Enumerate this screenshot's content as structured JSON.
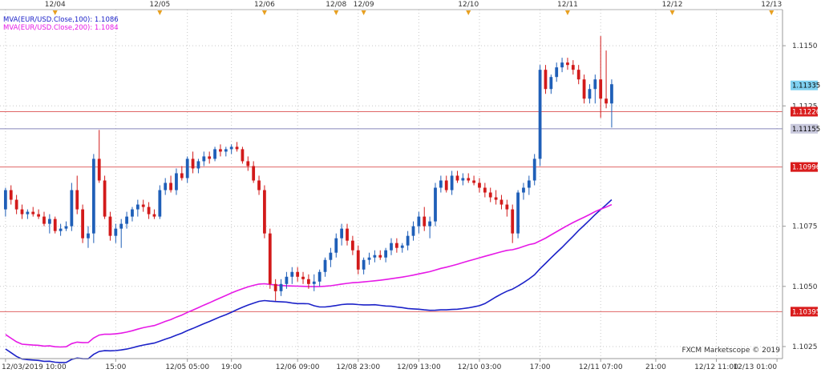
{
  "chart_data": {
    "type": "candlestick",
    "credit": "FXCM Marketscope © 2019",
    "legend": [
      {
        "label": "MVA(EUR/USD.Close,100): 1.1086",
        "color": "#1c22c8"
      },
      {
        "label": "MVA(EUR/USD.Close,200): 1.1084",
        "color": "#e619e6"
      }
    ],
    "ylim": [
      1.102,
      1.1165
    ],
    "y_ticks": [
      "1.1150",
      "1.1125",
      "1.1075",
      "1.1050",
      "1.1025"
    ],
    "y_tick_values": [
      1.115,
      1.1125,
      1.1075,
      1.105,
      1.1025
    ],
    "top_axis": {
      "labels": [
        "12/04",
        "12/05",
        "12/06",
        "12/08",
        "12/09",
        "12/10",
        "12/11",
        "12/12",
        "12/13"
      ],
      "positions": [
        9,
        28,
        47,
        60,
        65,
        84,
        102,
        121,
        139
      ]
    },
    "bottom_axis": {
      "labels": [
        "12/03/2019 10:00",
        "15:00",
        "12/05 05:00",
        "19:00",
        "12/06 09:00",
        "12/08 23:00",
        "12/09 13:00",
        "12/10 03:00",
        "17:00",
        "12/11 07:00",
        "21:00",
        "12/12 11:00",
        "12/13 01:00"
      ],
      "positions": [
        0,
        20,
        33,
        41,
        53,
        64,
        75,
        86,
        97,
        108,
        118,
        129,
        140
      ]
    },
    "x_range": [
      -1,
      141
    ],
    "horizontal_lines": [
      {
        "value": 1.11226,
        "color": "#e06666",
        "label": "1.11226"
      },
      {
        "value": 1.11155,
        "color": "#8888bb",
        "label": "1.11155"
      },
      {
        "value": 1.10996,
        "color": "#e06666",
        "label": "1.10996"
      },
      {
        "value": 1.10395,
        "color": "#e06666",
        "label": "1.10395"
      }
    ],
    "last_price": {
      "value": 1.11335,
      "label": "1.11335"
    },
    "candles": [
      [
        1.1082,
        1.1091,
        1.1079,
        1.109
      ],
      [
        1.109,
        1.1092,
        1.1084,
        1.1086
      ],
      [
        1.1086,
        1.1088,
        1.108,
        1.1082
      ],
      [
        1.1082,
        1.1084,
        1.1078,
        1.108
      ],
      [
        1.108,
        1.1082,
        1.1078,
        1.1081
      ],
      [
        1.1081,
        1.1083,
        1.1079,
        1.108
      ],
      [
        1.108,
        1.1082,
        1.1078,
        1.1079
      ],
      [
        1.1079,
        1.1081,
        1.1075,
        1.1076
      ],
      [
        1.1076,
        1.108,
        1.1072,
        1.1078
      ],
      [
        1.1078,
        1.1079,
        1.1072,
        1.1073
      ],
      [
        1.1073,
        1.1076,
        1.1071,
        1.1074
      ],
      [
        1.1074,
        1.1077,
        1.1073,
        1.1075
      ],
      [
        1.1075,
        1.1093,
        1.1073,
        1.109
      ],
      [
        1.109,
        1.1096,
        1.108,
        1.1082
      ],
      [
        1.1082,
        1.1084,
        1.1068,
        1.107
      ],
      [
        1.107,
        1.1075,
        1.1066,
        1.1072
      ],
      [
        1.1072,
        1.1105,
        1.1068,
        1.1103
      ],
      [
        1.1103,
        1.1115,
        1.1093,
        1.1094
      ],
      [
        1.1094,
        1.1096,
        1.1078,
        1.1079
      ],
      [
        1.1079,
        1.1081,
        1.1069,
        1.1071
      ],
      [
        1.1071,
        1.1076,
        1.1068,
        1.1074
      ],
      [
        1.1074,
        1.1078,
        1.1066,
        1.1076
      ],
      [
        1.1076,
        1.1081,
        1.1074,
        1.1079
      ],
      [
        1.1079,
        1.1083,
        1.1077,
        1.1082
      ],
      [
        1.1082,
        1.1086,
        1.1079,
        1.1084
      ],
      [
        1.1084,
        1.1086,
        1.1081,
        1.1083
      ],
      [
        1.1083,
        1.1085,
        1.1078,
        1.108
      ],
      [
        1.108,
        1.1082,
        1.1078,
        1.1079
      ],
      [
        1.1079,
        1.1092,
        1.1078,
        1.109
      ],
      [
        1.109,
        1.1095,
        1.1088,
        1.1093
      ],
      [
        1.1093,
        1.1096,
        1.1089,
        1.109
      ],
      [
        1.109,
        1.1099,
        1.1088,
        1.1097
      ],
      [
        1.1097,
        1.11,
        1.1094,
        1.1095
      ],
      [
        1.1095,
        1.1104,
        1.1093,
        1.1103
      ],
      [
        1.1103,
        1.1106,
        1.1097,
        1.1099
      ],
      [
        1.1099,
        1.1103,
        1.1097,
        1.1102
      ],
      [
        1.1102,
        1.1106,
        1.11,
        1.1104
      ],
      [
        1.1104,
        1.1106,
        1.1101,
        1.1103
      ],
      [
        1.1103,
        1.1108,
        1.1102,
        1.1107
      ],
      [
        1.1107,
        1.1109,
        1.1104,
        1.1106
      ],
      [
        1.1106,
        1.1108,
        1.1104,
        1.1107
      ],
      [
        1.1107,
        1.1109,
        1.1105,
        1.1108
      ],
      [
        1.1108,
        1.111,
        1.1106,
        1.1107
      ],
      [
        1.1107,
        1.1108,
        1.1101,
        1.1102
      ],
      [
        1.1102,
        1.1104,
        1.1098,
        1.11
      ],
      [
        1.11,
        1.1102,
        1.1093,
        1.1094
      ],
      [
        1.1094,
        1.1096,
        1.1088,
        1.109
      ],
      [
        1.109,
        1.1092,
        1.107,
        1.1072
      ],
      [
        1.1072,
        1.1074,
        1.1049,
        1.1051
      ],
      [
        1.1051,
        1.1053,
        1.1044,
        1.1048
      ],
      [
        1.1048,
        1.1053,
        1.1046,
        1.1051
      ],
      [
        1.1051,
        1.1056,
        1.1049,
        1.1054
      ],
      [
        1.1054,
        1.1058,
        1.1051,
        1.1056
      ],
      [
        1.1056,
        1.1058,
        1.1052,
        1.1054
      ],
      [
        1.1054,
        1.1056,
        1.1051,
        1.1053
      ],
      [
        1.1053,
        1.1055,
        1.1049,
        1.1051
      ],
      [
        1.1051,
        1.1055,
        1.1048,
        1.1052
      ],
      [
        1.1052,
        1.1057,
        1.105,
        1.1056
      ],
      [
        1.1056,
        1.1062,
        1.1054,
        1.1061
      ],
      [
        1.1061,
        1.1066,
        1.1058,
        1.1064
      ],
      [
        1.1064,
        1.1072,
        1.1062,
        1.107
      ],
      [
        1.107,
        1.1076,
        1.1067,
        1.1074
      ],
      [
        1.1074,
        1.1076,
        1.1067,
        1.1069
      ],
      [
        1.1069,
        1.1071,
        1.1063,
        1.1065
      ],
      [
        1.1065,
        1.1067,
        1.1055,
        1.1057
      ],
      [
        1.1057,
        1.1062,
        1.1055,
        1.1061
      ],
      [
        1.1061,
        1.1064,
        1.1059,
        1.1062
      ],
      [
        1.1062,
        1.1065,
        1.106,
        1.1063
      ],
      [
        1.1063,
        1.1065,
        1.1061,
        1.1062
      ],
      [
        1.1062,
        1.1066,
        1.106,
        1.1065
      ],
      [
        1.1065,
        1.107,
        1.1063,
        1.1068
      ],
      [
        1.1068,
        1.107,
        1.1064,
        1.1066
      ],
      [
        1.1066,
        1.1068,
        1.1064,
        1.1067
      ],
      [
        1.1067,
        1.1073,
        1.1065,
        1.1071
      ],
      [
        1.1071,
        1.1077,
        1.1069,
        1.1075
      ],
      [
        1.1075,
        1.1081,
        1.1072,
        1.1079
      ],
      [
        1.1079,
        1.1083,
        1.1073,
        1.1075
      ],
      [
        1.1075,
        1.1079,
        1.107,
        1.1077
      ],
      [
        1.1077,
        1.1093,
        1.1075,
        1.1091
      ],
      [
        1.1091,
        1.1096,
        1.1089,
        1.1094
      ],
      [
        1.1094,
        1.1096,
        1.1089,
        1.109
      ],
      [
        1.109,
        1.1098,
        1.1088,
        1.1096
      ],
      [
        1.1096,
        1.1098,
        1.1093,
        1.1094
      ],
      [
        1.1094,
        1.1097,
        1.1092,
        1.1095
      ],
      [
        1.1095,
        1.1097,
        1.1093,
        1.1094
      ],
      [
        1.1094,
        1.1096,
        1.1092,
        1.1093
      ],
      [
        1.1093,
        1.1095,
        1.1089,
        1.1091
      ],
      [
        1.1091,
        1.1093,
        1.1087,
        1.1089
      ],
      [
        1.1089,
        1.1091,
        1.1085,
        1.1087
      ],
      [
        1.1087,
        1.109,
        1.1084,
        1.1086
      ],
      [
        1.1086,
        1.1088,
        1.1082,
        1.1084
      ],
      [
        1.1084,
        1.1086,
        1.1079,
        1.1082
      ],
      [
        1.1082,
        1.1084,
        1.1068,
        1.1072
      ],
      [
        1.1072,
        1.109,
        1.107,
        1.1089
      ],
      [
        1.1089,
        1.1093,
        1.1086,
        1.1091
      ],
      [
        1.1091,
        1.1096,
        1.1088,
        1.1094
      ],
      [
        1.1094,
        1.1105,
        1.1092,
        1.1103
      ],
      [
        1.1103,
        1.1142,
        1.11,
        1.114
      ],
      [
        1.114,
        1.1142,
        1.113,
        1.1132
      ],
      [
        1.1132,
        1.1138,
        1.113,
        1.1137
      ],
      [
        1.1137,
        1.1143,
        1.1135,
        1.1141
      ],
      [
        1.1141,
        1.1145,
        1.1139,
        1.1143
      ],
      [
        1.1143,
        1.1145,
        1.114,
        1.1142
      ],
      [
        1.1142,
        1.1144,
        1.1138,
        1.114
      ],
      [
        1.114,
        1.1142,
        1.1134,
        1.1136
      ],
      [
        1.1136,
        1.1138,
        1.1126,
        1.1128
      ],
      [
        1.1128,
        1.1134,
        1.1126,
        1.1132
      ],
      [
        1.1132,
        1.1138,
        1.1126,
        1.1136
      ],
      [
        1.1136,
        1.1154,
        1.112,
        1.1128
      ],
      [
        1.1128,
        1.1148,
        1.1124,
        1.1126
      ],
      [
        1.1126,
        1.1136,
        1.1116,
        1.1134
      ]
    ]
  }
}
